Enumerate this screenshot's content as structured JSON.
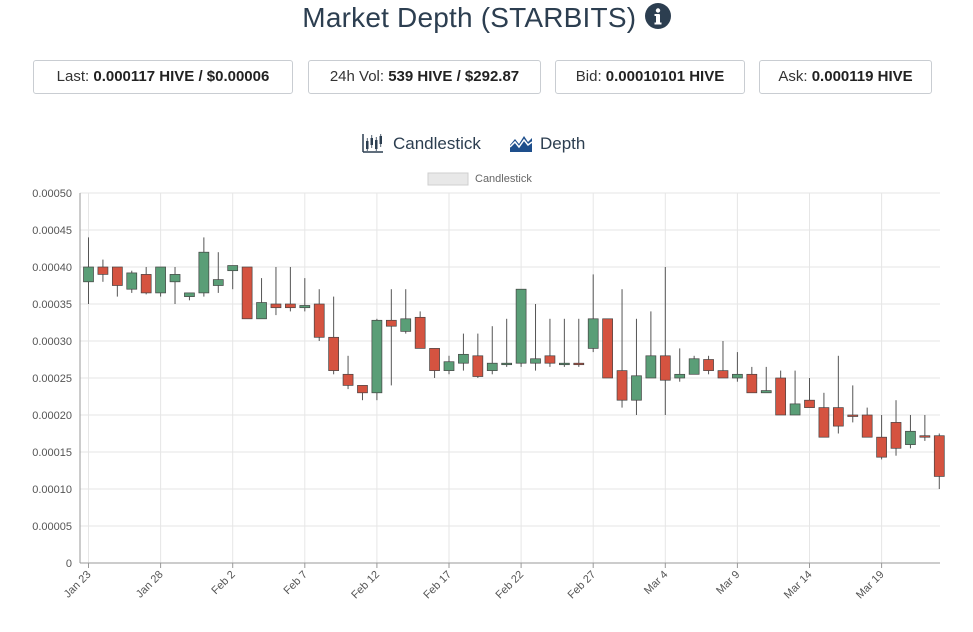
{
  "header": {
    "title": "Market Depth (STARBITS)",
    "info_icon": "info-circle-icon"
  },
  "stats": {
    "last": {
      "label": "Last:",
      "value": "0.000117 HIVE / $0.00006"
    },
    "volume": {
      "label": "24h Vol:",
      "value": "539 HIVE / $292.87"
    },
    "bid": {
      "label": "Bid:",
      "value": "0.00010101 HIVE"
    },
    "ask": {
      "label": "Ask:",
      "value": "0.000119 HIVE"
    }
  },
  "toggles": {
    "candlestick": {
      "label": "Candlestick",
      "icon": "candlestick-chart-icon"
    },
    "depth": {
      "label": "Depth",
      "icon": "area-chart-icon"
    }
  },
  "colors": {
    "up": "#5a9e77",
    "down": "#d55340",
    "grid": "#e6e6e6",
    "axis": "#999999",
    "title": "#2c3e50"
  },
  "chart_data": {
    "type": "candlestick",
    "legend": {
      "label": "Candlestick",
      "position": "top-center"
    },
    "ylim": [
      0,
      0.0005
    ],
    "yticks": [
      "0",
      "0.00005",
      "0.00010",
      "0.00015",
      "0.00020",
      "0.00025",
      "0.00030",
      "0.00035",
      "0.00040",
      "0.00045",
      "0.00050"
    ],
    "xticks": [
      "Jan 23",
      "Jan 28",
      "Feb 2",
      "Feb 7",
      "Feb 12",
      "Feb 17",
      "Feb 22",
      "Feb 27",
      "Mar 4",
      "Mar 9",
      "Mar 14",
      "Mar 19"
    ],
    "grid": true,
    "candles": [
      {
        "date": "Jan 23",
        "o": 0.00038,
        "h": 0.00044,
        "l": 0.00035,
        "c": 0.0004
      },
      {
        "date": "Jan 24",
        "o": 0.0004,
        "h": 0.00041,
        "l": 0.00038,
        "c": 0.00039
      },
      {
        "date": "Jan 25",
        "o": 0.0004,
        "h": 0.0004,
        "l": 0.00036,
        "c": 0.000375
      },
      {
        "date": "Jan 26",
        "o": 0.00037,
        "h": 0.000395,
        "l": 0.000365,
        "c": 0.000392
      },
      {
        "date": "Jan 27",
        "o": 0.00039,
        "h": 0.0004,
        "l": 0.000363,
        "c": 0.000365
      },
      {
        "date": "Jan 28",
        "o": 0.000365,
        "h": 0.0004,
        "l": 0.00036,
        "c": 0.0004
      },
      {
        "date": "Jan 29",
        "o": 0.00038,
        "h": 0.0004,
        "l": 0.00035,
        "c": 0.00039
      },
      {
        "date": "Jan 30",
        "o": 0.00036,
        "h": 0.000365,
        "l": 0.000355,
        "c": 0.000365
      },
      {
        "date": "Jan 31",
        "o": 0.000365,
        "h": 0.00044,
        "l": 0.00036,
        "c": 0.00042
      },
      {
        "date": "Feb 1",
        "o": 0.000375,
        "h": 0.00042,
        "l": 0.000365,
        "c": 0.000383
      },
      {
        "date": "Feb 2",
        "o": 0.000395,
        "h": 0.0004,
        "l": 0.00037,
        "c": 0.000402
      },
      {
        "date": "Feb 3",
        "o": 0.0004,
        "h": 0.0004,
        "l": 0.00033,
        "c": 0.00033
      },
      {
        "date": "Feb 4",
        "o": 0.00033,
        "h": 0.000385,
        "l": 0.00033,
        "c": 0.000352
      },
      {
        "date": "Feb 5",
        "o": 0.00035,
        "h": 0.0004,
        "l": 0.000335,
        "c": 0.000345
      },
      {
        "date": "Feb 6",
        "o": 0.00035,
        "h": 0.0004,
        "l": 0.00034,
        "c": 0.000345
      },
      {
        "date": "Feb 7",
        "o": 0.000345,
        "h": 0.000385,
        "l": 0.00034,
        "c": 0.000348
      },
      {
        "date": "Feb 8",
        "o": 0.00035,
        "h": 0.00037,
        "l": 0.0003,
        "c": 0.000305
      },
      {
        "date": "Feb 9",
        "o": 0.000305,
        "h": 0.00036,
        "l": 0.000255,
        "c": 0.00026
      },
      {
        "date": "Feb 10",
        "o": 0.000255,
        "h": 0.00028,
        "l": 0.000235,
        "c": 0.00024
      },
      {
        "date": "Feb 11",
        "o": 0.00024,
        "h": 0.00024,
        "l": 0.00022,
        "c": 0.00023
      },
      {
        "date": "Feb 12",
        "o": 0.00023,
        "h": 0.00033,
        "l": 0.00022,
        "c": 0.000328
      },
      {
        "date": "Feb 13",
        "o": 0.000328,
        "h": 0.00037,
        "l": 0.00024,
        "c": 0.00032
      },
      {
        "date": "Feb 14",
        "o": 0.000313,
        "h": 0.00037,
        "l": 0.00031,
        "c": 0.00033
      },
      {
        "date": "Feb 15",
        "o": 0.000332,
        "h": 0.00034,
        "l": 0.00029,
        "c": 0.00029
      },
      {
        "date": "Feb 16",
        "o": 0.00029,
        "h": 0.00029,
        "l": 0.00025,
        "c": 0.00026
      },
      {
        "date": "Feb 17",
        "o": 0.00026,
        "h": 0.00028,
        "l": 0.000255,
        "c": 0.000272
      },
      {
        "date": "Feb 18",
        "o": 0.00027,
        "h": 0.00031,
        "l": 0.00026,
        "c": 0.000282
      },
      {
        "date": "Feb 19",
        "o": 0.00028,
        "h": 0.00031,
        "l": 0.00025,
        "c": 0.000252
      },
      {
        "date": "Feb 20",
        "o": 0.00026,
        "h": 0.00032,
        "l": 0.000255,
        "c": 0.00027
      },
      {
        "date": "Feb 21",
        "o": 0.00027,
        "h": 0.00033,
        "l": 0.000265,
        "c": 0.00027
      },
      {
        "date": "Feb 22",
        "o": 0.00027,
        "h": 0.00037,
        "l": 0.000265,
        "c": 0.00037
      },
      {
        "date": "Feb 23",
        "o": 0.00027,
        "h": 0.00035,
        "l": 0.00026,
        "c": 0.000276
      },
      {
        "date": "Feb 24",
        "o": 0.00028,
        "h": 0.00033,
        "l": 0.000265,
        "c": 0.00027
      },
      {
        "date": "Feb 25",
        "o": 0.00027,
        "h": 0.00033,
        "l": 0.000265,
        "c": 0.00027
      },
      {
        "date": "Feb 26",
        "o": 0.00027,
        "h": 0.00033,
        "l": 0.000265,
        "c": 0.000268
      },
      {
        "date": "Feb 27",
        "o": 0.00029,
        "h": 0.00039,
        "l": 0.000285,
        "c": 0.00033
      },
      {
        "date": "Feb 28",
        "o": 0.00033,
        "h": 0.00033,
        "l": 0.00025,
        "c": 0.00025
      },
      {
        "date": "Mar 1",
        "o": 0.00026,
        "h": 0.00037,
        "l": 0.00021,
        "c": 0.00022
      },
      {
        "date": "Mar 2",
        "o": 0.00022,
        "h": 0.00033,
        "l": 0.0002,
        "c": 0.000253
      },
      {
        "date": "Mar 3",
        "o": 0.00025,
        "h": 0.00034,
        "l": 0.00025,
        "c": 0.00028
      },
      {
        "date": "Mar 4",
        "o": 0.00028,
        "h": 0.0004,
        "l": 0.0002,
        "c": 0.000247
      },
      {
        "date": "Mar 5",
        "o": 0.00025,
        "h": 0.00029,
        "l": 0.000245,
        "c": 0.000255
      },
      {
        "date": "Mar 6",
        "o": 0.000255,
        "h": 0.00028,
        "l": 0.000255,
        "c": 0.000276
      },
      {
        "date": "Mar 7",
        "o": 0.000275,
        "h": 0.00028,
        "l": 0.000255,
        "c": 0.00026
      },
      {
        "date": "Mar 8",
        "o": 0.00026,
        "h": 0.0003,
        "l": 0.00025,
        "c": 0.00025
      },
      {
        "date": "Mar 9",
        "o": 0.00025,
        "h": 0.000285,
        "l": 0.000245,
        "c": 0.000255
      },
      {
        "date": "Mar 10",
        "o": 0.000255,
        "h": 0.000265,
        "l": 0.00023,
        "c": 0.00023
      },
      {
        "date": "Mar 11",
        "o": 0.00023,
        "h": 0.000265,
        "l": 0.00023,
        "c": 0.000233
      },
      {
        "date": "Mar 12",
        "o": 0.00025,
        "h": 0.00026,
        "l": 0.0002,
        "c": 0.0002
      },
      {
        "date": "Mar 13",
        "o": 0.0002,
        "h": 0.00026,
        "l": 0.0002,
        "c": 0.000215
      },
      {
        "date": "Mar 14",
        "o": 0.00022,
        "h": 0.00025,
        "l": 0.00021,
        "c": 0.00021
      },
      {
        "date": "Mar 15",
        "o": 0.00021,
        "h": 0.00023,
        "l": 0.00017,
        "c": 0.00017
      },
      {
        "date": "Mar 16",
        "o": 0.00021,
        "h": 0.00028,
        "l": 0.000175,
        "c": 0.000185
      },
      {
        "date": "Mar 17",
        "o": 0.0002,
        "h": 0.00024,
        "l": 0.00019,
        "c": 0.000198
      },
      {
        "date": "Mar 18",
        "o": 0.0002,
        "h": 0.00021,
        "l": 0.00017,
        "c": 0.00017
      },
      {
        "date": "Mar 19",
        "o": 0.00017,
        "h": 0.0002,
        "l": 0.00014,
        "c": 0.000143
      },
      {
        "date": "Mar 20",
        "o": 0.00019,
        "h": 0.00022,
        "l": 0.000145,
        "c": 0.000155
      },
      {
        "date": "Mar 21",
        "o": 0.00016,
        "h": 0.0002,
        "l": 0.000155,
        "c": 0.000178
      },
      {
        "date": "Mar 22",
        "o": 0.000172,
        "h": 0.0002,
        "l": 0.000165,
        "c": 0.00017
      },
      {
        "date": "Mar 23",
        "o": 0.000172,
        "h": 0.000175,
        "l": 0.0001,
        "c": 0.000117
      }
    ]
  }
}
